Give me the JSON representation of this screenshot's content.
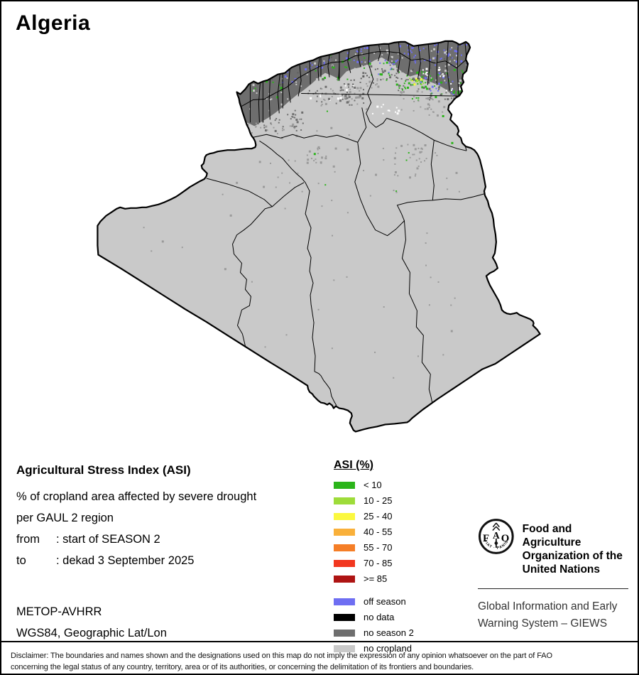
{
  "page": {
    "title": "Algeria"
  },
  "map_info": {
    "heading": "Agricultural Stress Index (ASI)",
    "line1": "% of cropland area affected by severe drought",
    "line2": "per GAUL 2 region",
    "from_label": "from",
    "from_value": ": start of SEASON 2",
    "to_label": "to",
    "to_value": ": dekad 3 September 2025",
    "sensor": "METOP-AVHRR",
    "projection": "WGS84, Geographic Lat/Lon"
  },
  "legend": {
    "title": "ASI (%)",
    "classes": [
      {
        "label": "< 10",
        "color": "#2bb41a"
      },
      {
        "label": "10 - 25",
        "color": "#9edc3a"
      },
      {
        "label": "25 - 40",
        "color": "#fbf83f"
      },
      {
        "label": "40 - 55",
        "color": "#f9b03a"
      },
      {
        "label": "55 - 70",
        "color": "#f57e27"
      },
      {
        "label": "70 - 85",
        "color": "#f2371f"
      },
      {
        "label": ">= 85",
        "color": "#ae1413"
      }
    ],
    "extra_classes": [
      {
        "label": "off season",
        "color": "#6e6ef2"
      },
      {
        "label": "no data",
        "color": "#000000"
      },
      {
        "label": "no season 2",
        "color": "#6e6e6e"
      },
      {
        "label": "no cropland",
        "color": "#c9c9c9"
      }
    ]
  },
  "fao": {
    "org_line1": "Food and Agriculture",
    "org_line2": "Organization of the",
    "org_line3": "United Nations",
    "giews_line1": "Global Information and Early",
    "giews_line2": "Warning System – GIEWS",
    "logo_f": "F",
    "logo_a": "A",
    "logo_o": "O",
    "logo_motto": "FIAT · PANIS"
  },
  "disclaimer": {
    "line1": "Disclaimer: The boundaries and names shown and the designations used on this map do not imply the expression of any opinion whatsoever on the part of FAO",
    "line2": "concerning the legal status of any country, territory, area or of its authorities, or concerning the delimitation of its frontiers and boundaries."
  }
}
